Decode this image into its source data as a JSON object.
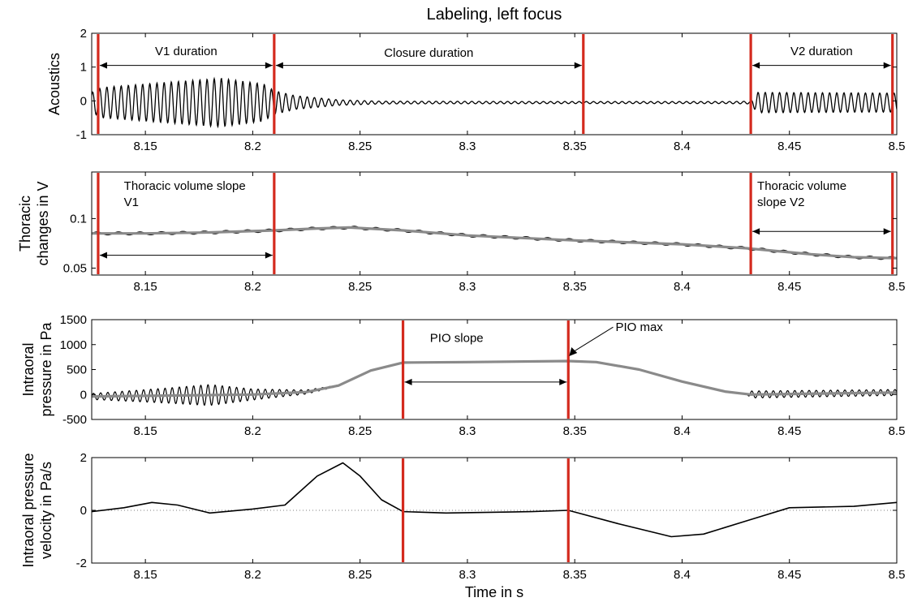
{
  "title": "Labeling, left focus",
  "xlabel": "Time in s",
  "colors": {
    "marker": "#d42a1e",
    "signal": "#000000",
    "smooth": "#8a8a8a"
  },
  "chart_data": [
    {
      "type": "line",
      "ylabel": "Acoustics",
      "xlim": [
        8.125,
        8.5
      ],
      "ylim": [
        -1,
        2
      ],
      "xticks": [
        8.15,
        8.2,
        8.25,
        8.3,
        8.35,
        8.4,
        8.45,
        8.5
      ],
      "yticks": [
        -1,
        0,
        1,
        2
      ],
      "series": [
        {
          "kind": "oscillation",
          "envelope": [
            [
              8.125,
              0.3
            ],
            [
              8.13,
              0.45
            ],
            [
              8.16,
              0.6
            ],
            [
              8.185,
              0.72
            ],
            [
              8.205,
              0.55
            ],
            [
              8.21,
              0.35
            ],
            [
              8.22,
              0.2
            ],
            [
              8.24,
              0.08
            ],
            [
              8.26,
              0.04
            ],
            [
              8.35,
              0.03
            ],
            [
              8.42,
              0.03
            ],
            [
              8.432,
              0.04
            ],
            [
              8.435,
              0.3
            ],
            [
              8.5,
              0.28
            ]
          ]
        }
      ],
      "markers": [
        8.128,
        8.21,
        8.354,
        8.432,
        8.498
      ],
      "annotations": [
        {
          "text": "V1 duration",
          "x": 8.169,
          "y": 1.35,
          "from": 8.128,
          "to": 8.21,
          "arrow_y": 1.05
        },
        {
          "text": "Closure duration",
          "x": 8.282,
          "y": 1.3,
          "from": 8.21,
          "to": 8.354,
          "arrow_y": 1.05
        },
        {
          "text": "V2 duration",
          "x": 8.465,
          "y": 1.35,
          "from": 8.432,
          "to": 8.498,
          "arrow_y": 1.05
        }
      ]
    },
    {
      "type": "line",
      "ylabel_lines": [
        "Thoracic",
        "changes in V"
      ],
      "xlim": [
        8.125,
        8.5
      ],
      "ylim": [
        0.043,
        0.147
      ],
      "xticks": [
        8.15,
        8.2,
        8.25,
        8.3,
        8.35,
        8.4,
        8.45,
        8.5
      ],
      "yticks": [
        0.05,
        0.1
      ],
      "series": [
        {
          "kind": "smooth",
          "points": [
            [
              8.125,
              0.085
            ],
            [
              8.15,
              0.085
            ],
            [
              8.18,
              0.086
            ],
            [
              8.21,
              0.088
            ],
            [
              8.23,
              0.09
            ],
            [
              8.245,
              0.091
            ],
            [
              8.27,
              0.088
            ],
            [
              8.3,
              0.083
            ],
            [
              8.35,
              0.078
            ],
            [
              8.4,
              0.074
            ],
            [
              8.43,
              0.07
            ],
            [
              8.46,
              0.064
            ],
            [
              8.48,
              0.061
            ],
            [
              8.5,
              0.06
            ]
          ]
        }
      ],
      "markers": [
        8.128,
        8.21,
        8.432,
        8.498
      ],
      "annotations": [
        {
          "lines": [
            "Thoracic volume slope",
            "V1"
          ],
          "x": 8.14,
          "y": 0.129,
          "from": 8.128,
          "to": 8.21,
          "arrow_y": 0.063
        },
        {
          "lines": [
            "Thoracic volume",
            "slope V2"
          ],
          "x": 8.435,
          "y": 0.129,
          "from": 8.432,
          "to": 8.498,
          "arrow_y": 0.087
        }
      ]
    },
    {
      "type": "line",
      "ylabel_lines": [
        "Intraoral",
        "pressure in Pa"
      ],
      "xlim": [
        8.125,
        8.5
      ],
      "ylim": [
        -500,
        1500
      ],
      "xticks": [
        8.15,
        8.2,
        8.25,
        8.3,
        8.35,
        8.4,
        8.45,
        8.5
      ],
      "yticks": [
        -500,
        0,
        500,
        1000,
        1500
      ],
      "series": [
        {
          "kind": "smooth",
          "points": [
            [
              8.125,
              -40
            ],
            [
              8.2,
              0
            ],
            [
              8.225,
              50
            ],
            [
              8.24,
              180
            ],
            [
              8.255,
              480
            ],
            [
              8.27,
              640
            ],
            [
              8.3,
              650
            ],
            [
              8.347,
              670
            ],
            [
              8.36,
              650
            ],
            [
              8.38,
              500
            ],
            [
              8.4,
              260
            ],
            [
              8.42,
              60
            ],
            [
              8.432,
              0
            ],
            [
              8.5,
              40
            ]
          ]
        }
      ],
      "markers": [
        8.27,
        8.347
      ],
      "annotations": [
        {
          "text": "PIO slope",
          "x": 8.295,
          "y": 1050,
          "from": 8.27,
          "to": 8.347,
          "arrow_y": 250
        },
        {
          "text": "PIO max",
          "x": 8.369,
          "y": 1270
        }
      ]
    },
    {
      "type": "line",
      "ylabel_lines": [
        "Intraoral pressure",
        "velocity in Pa/s"
      ],
      "xlim": [
        8.125,
        8.5
      ],
      "ylim": [
        -2,
        2
      ],
      "xticks": [
        8.15,
        8.2,
        8.25,
        8.3,
        8.35,
        8.4,
        8.45,
        8.5
      ],
      "yticks": [
        -2,
        0,
        2
      ],
      "series": [
        {
          "kind": "smooth",
          "points": [
            [
              8.125,
              -0.05
            ],
            [
              8.14,
              0.1
            ],
            [
              8.153,
              0.3
            ],
            [
              8.165,
              0.2
            ],
            [
              8.18,
              -0.1
            ],
            [
              8.2,
              0.05
            ],
            [
              8.215,
              0.2
            ],
            [
              8.23,
              1.3
            ],
            [
              8.242,
              1.8
            ],
            [
              8.25,
              1.3
            ],
            [
              8.26,
              0.4
            ],
            [
              8.27,
              -0.05
            ],
            [
              8.29,
              -0.1
            ],
            [
              8.33,
              -0.05
            ],
            [
              8.347,
              0
            ],
            [
              8.37,
              -0.5
            ],
            [
              8.395,
              -1.0
            ],
            [
              8.41,
              -0.9
            ],
            [
              8.43,
              -0.4
            ],
            [
              8.45,
              0.1
            ],
            [
              8.48,
              0.15
            ],
            [
              8.5,
              0.3
            ]
          ]
        }
      ],
      "markers": [
        8.27,
        8.347
      ],
      "zero_line": true
    }
  ]
}
